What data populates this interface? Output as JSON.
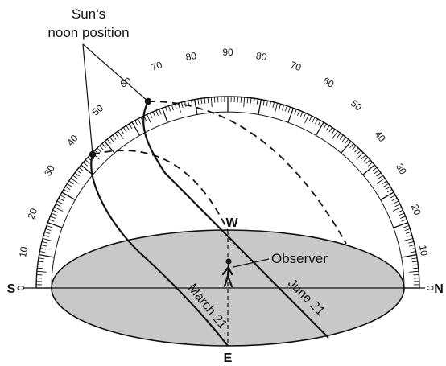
{
  "callout": {
    "line1": "Sun’s",
    "line2": "noon position"
  },
  "directions": {
    "south": "S",
    "north": "N",
    "west": "W",
    "east": "E"
  },
  "observer_label": "Observer",
  "paths": {
    "june": "June 21",
    "march": "March 21"
  },
  "protractor": {
    "left_labels": [
      "0",
      "10",
      "20",
      "30",
      "40",
      "50",
      "60",
      "70",
      "80"
    ],
    "top_label": "90",
    "right_labels": [
      "80",
      "70",
      "60",
      "50",
      "40",
      "30",
      "20",
      "10",
      "0"
    ]
  },
  "colors": {
    "ground": "#c8c8c8",
    "ink": "#111111"
  }
}
